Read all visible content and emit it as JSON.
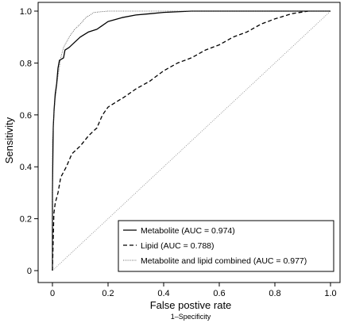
{
  "chart_data": {
    "type": "line",
    "title": "",
    "xlabel": "False postive rate",
    "xlabel_sub": "1–Specificity",
    "ylabel": "Sensitivity",
    "xlim": [
      0,
      1
    ],
    "ylim": [
      0,
      1
    ],
    "x_ticks": [
      "0",
      "0.2",
      "0.4",
      "0.6",
      "0.8",
      "1.0"
    ],
    "y_ticks": [
      "0",
      "0.2",
      "0.4",
      "0.6",
      "0.8",
      "1.0"
    ],
    "grid": false,
    "legend_position": "bottom-right",
    "reference_line": {
      "from": [
        0,
        0
      ],
      "to": [
        1,
        1
      ],
      "style": "dotted"
    },
    "series": [
      {
        "name": "Metabolite (AUC = 0.974)",
        "style": "solid",
        "points": [
          [
            0,
            0
          ],
          [
            0,
            0.3
          ],
          [
            0.003,
            0.55
          ],
          [
            0.006,
            0.62
          ],
          [
            0.01,
            0.68
          ],
          [
            0.015,
            0.72
          ],
          [
            0.02,
            0.78
          ],
          [
            0.025,
            0.81
          ],
          [
            0.04,
            0.82
          ],
          [
            0.045,
            0.85
          ],
          [
            0.06,
            0.86
          ],
          [
            0.08,
            0.88
          ],
          [
            0.1,
            0.9
          ],
          [
            0.13,
            0.92
          ],
          [
            0.16,
            0.93
          ],
          [
            0.2,
            0.96
          ],
          [
            0.25,
            0.975
          ],
          [
            0.3,
            0.985
          ],
          [
            0.35,
            0.99
          ],
          [
            0.4,
            0.995
          ],
          [
            0.5,
            1.0
          ],
          [
            1.0,
            1.0
          ]
        ]
      },
      {
        "name": "Lipid (AUC = 0.788)",
        "style": "dashed",
        "points": [
          [
            0,
            0
          ],
          [
            0.005,
            0.22
          ],
          [
            0.01,
            0.26
          ],
          [
            0.02,
            0.3
          ],
          [
            0.03,
            0.36
          ],
          [
            0.05,
            0.4
          ],
          [
            0.07,
            0.45
          ],
          [
            0.1,
            0.48
          ],
          [
            0.13,
            0.52
          ],
          [
            0.16,
            0.55
          ],
          [
            0.18,
            0.6
          ],
          [
            0.2,
            0.63
          ],
          [
            0.23,
            0.65
          ],
          [
            0.26,
            0.67
          ],
          [
            0.3,
            0.7
          ],
          [
            0.35,
            0.73
          ],
          [
            0.4,
            0.77
          ],
          [
            0.45,
            0.8
          ],
          [
            0.5,
            0.82
          ],
          [
            0.55,
            0.85
          ],
          [
            0.6,
            0.87
          ],
          [
            0.65,
            0.9
          ],
          [
            0.7,
            0.92
          ],
          [
            0.75,
            0.95
          ],
          [
            0.8,
            0.97
          ],
          [
            0.86,
            0.99
          ],
          [
            0.92,
            1.0
          ]
        ]
      },
      {
        "name": "Metabolite and lipid combined (AUC = 0.977)",
        "style": "dotted",
        "points": [
          [
            0,
            0
          ],
          [
            0,
            0.5
          ],
          [
            0.005,
            0.6
          ],
          [
            0.01,
            0.66
          ],
          [
            0.02,
            0.75
          ],
          [
            0.03,
            0.82
          ],
          [
            0.04,
            0.86
          ],
          [
            0.06,
            0.9
          ],
          [
            0.08,
            0.93
          ],
          [
            0.1,
            0.95
          ],
          [
            0.12,
            0.975
          ],
          [
            0.15,
            0.995
          ],
          [
            0.2,
            1.0
          ],
          [
            1.0,
            1.0
          ]
        ]
      }
    ]
  }
}
